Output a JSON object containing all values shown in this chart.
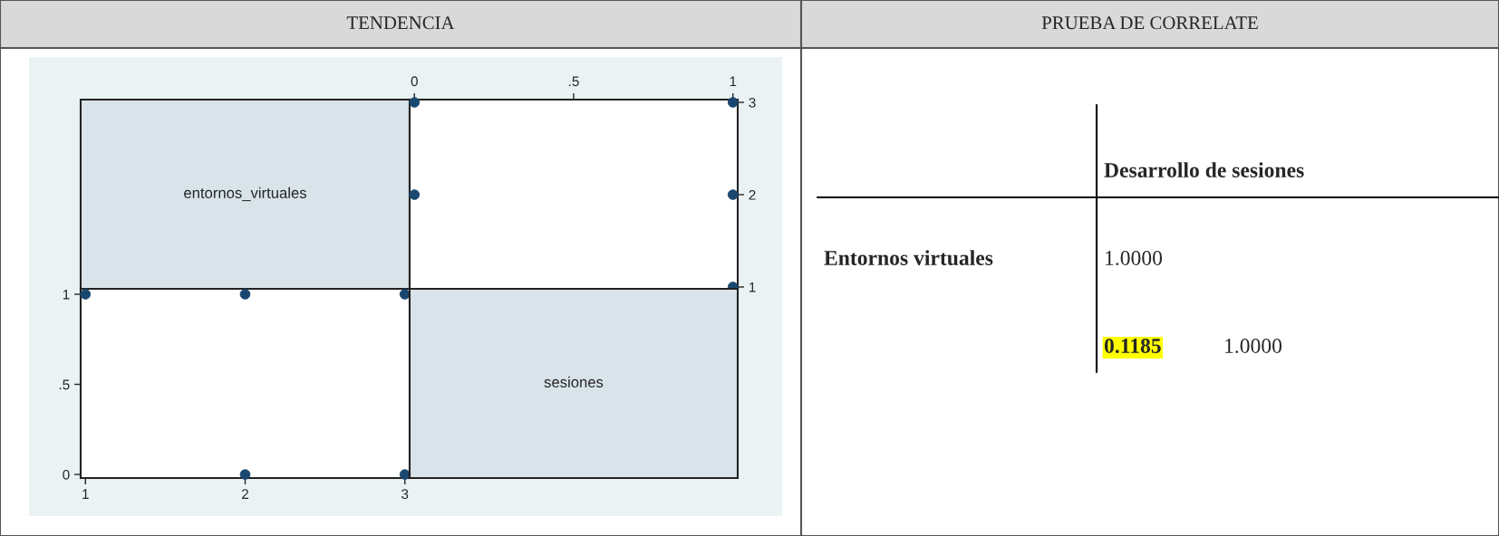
{
  "chart_data": [
    {
      "type": "other",
      "title": "TENDENCIA",
      "annotations": [
        "entornos_virtuales"
      ]
    },
    {
      "type": "scatter",
      "x": [
        1,
        1,
        1,
        0,
        0
      ],
      "values": [
        1,
        2,
        3,
        2,
        3
      ],
      "color": "#1a476f",
      "marker": "circle",
      "xlim": [
        -0.015,
        1.015
      ],
      "xticks": [
        0,
        {
          "value": 0.5,
          "label": ".5"
        },
        1
      ],
      "ylim": [
        0.98,
        3.03
      ],
      "yticks": [
        1,
        2,
        3
      ],
      "grid": false,
      "legend": false
    },
    {
      "type": "scatter",
      "x": [
        1,
        2,
        3,
        2,
        3
      ],
      "values": [
        1,
        1,
        1,
        0,
        0
      ],
      "color": "#1a476f",
      "marker": "circle",
      "xlim": [
        0.97,
        3.03
      ],
      "xticks": [
        1,
        2,
        3
      ],
      "ylim": [
        -0.02,
        1.03
      ],
      "yticks": [
        0,
        {
          "value": 0.5,
          "label": ".5"
        },
        1
      ],
      "grid": false,
      "legend": false
    },
    {
      "type": "other",
      "annotations": [
        "sesiones"
      ]
    },
    {
      "type": "other",
      "title": "PRUEBA DE CORRELATE",
      "annotations": [
        "Desarrollo de sesiones",
        "Entornos virtuales",
        "1.0000",
        "0.1185",
        "1.0000"
      ]
    }
  ]
}
